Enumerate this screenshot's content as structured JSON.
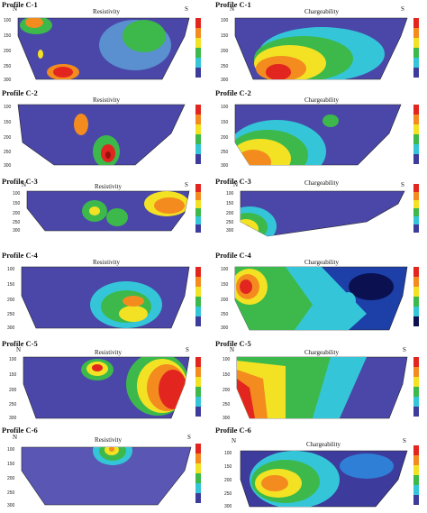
{
  "figure": {
    "panels": [
      {
        "id": "c1-res",
        "title": "Profile C-1",
        "property": "Resistivity",
        "north": "N",
        "south": "S",
        "depth_ticks": [
          "100",
          "150",
          "200",
          "250",
          "300"
        ]
      },
      {
        "id": "c1-chg",
        "title": "Profile C-1",
        "property": "Chargeability",
        "north": "N",
        "south": "S",
        "depth_ticks": [
          "100",
          "150",
          "200",
          "250",
          "300"
        ]
      },
      {
        "id": "c2-res",
        "title": "Profile C-2",
        "property": "Resistivity",
        "north": "",
        "south": "",
        "depth_ticks": [
          "100",
          "150",
          "200",
          "250",
          "300"
        ]
      },
      {
        "id": "c2-chg",
        "title": "Profile C-2",
        "property": "Chargeability",
        "north": "",
        "south": "",
        "depth_ticks": [
          "100",
          "150",
          "200",
          "250",
          "300"
        ]
      },
      {
        "id": "c3-res",
        "title": "Profile C-3",
        "property": "Resistivity",
        "north": "N",
        "south": "S",
        "depth_ticks": [
          "100",
          "150",
          "200",
          "250",
          "300"
        ]
      },
      {
        "id": "c3-chg",
        "title": "Profile C-3",
        "property": "Chargeability",
        "north": "N",
        "south": "S",
        "depth_ticks": [
          "100",
          "150",
          "200",
          "250",
          "300"
        ]
      },
      {
        "id": "c4-res",
        "title": "Profile C-4",
        "property": "Resistivity",
        "north": "",
        "south": "",
        "depth_ticks": [
          "100",
          "150",
          "200",
          "250",
          "300"
        ]
      },
      {
        "id": "c4-chg",
        "title": "Profile C-4",
        "property": "Chargeability",
        "north": "",
        "south": "",
        "depth_ticks": [
          "100",
          "150",
          "200",
          "250",
          "300"
        ]
      },
      {
        "id": "c5-res",
        "title": "Profile C-5",
        "property": "Resistivity",
        "north": "N",
        "south": "S",
        "depth_ticks": [
          "100",
          "150",
          "200",
          "250",
          "300"
        ]
      },
      {
        "id": "c5-chg",
        "title": "Profile C-5",
        "property": "Chargeability",
        "north": "N",
        "south": "S",
        "depth_ticks": [
          "100",
          "150",
          "200",
          "250",
          "300"
        ]
      },
      {
        "id": "c6-res",
        "title": "Profile C-6",
        "property": "Resistivity",
        "north": "N",
        "south": "S",
        "depth_ticks": [
          "100",
          "150",
          "200",
          "250",
          "300"
        ]
      },
      {
        "id": "c6-chg",
        "title": "Profile C-6",
        "property": "Chargeability",
        "north": "N",
        "south": "S",
        "depth_ticks": [
          "100",
          "150",
          "200",
          "250",
          "300"
        ]
      }
    ],
    "colors": {
      "background_low": "#3d3b9c",
      "low2": "#5a56b4",
      "mid_blue": "#2f7fd6",
      "cyan": "#34c6d8",
      "green": "#3cb94a",
      "yellow": "#f3e224",
      "orange": "#f38b1f",
      "red": "#e2261f",
      "dark_red": "#9a1010",
      "dark_navy": "#0b1150"
    }
  }
}
